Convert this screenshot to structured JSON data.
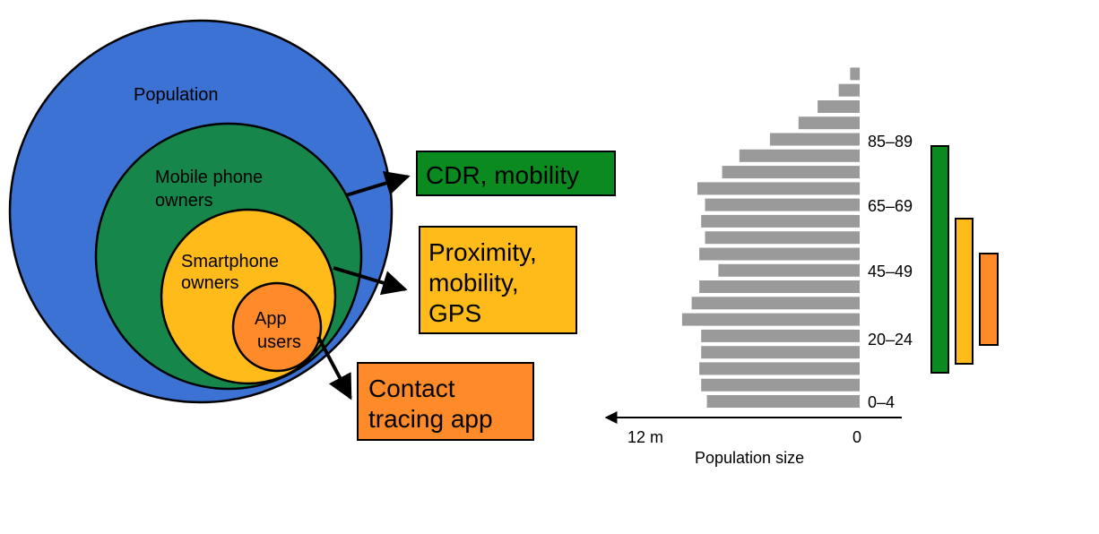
{
  "colors": {
    "population": "#3b72d3",
    "mobile": "#17864a",
    "smartphone": "#ffbb1a",
    "app": "#ff8a2a",
    "box_cdr": "#0b8a1f",
    "bar_gray": "#9a9a9a",
    "bracket_green": "#0b8a1f",
    "bracket_yellow": "#ffbb1a",
    "bracket_orange": "#ff8a2a"
  },
  "venn": {
    "population_label": "Population",
    "mobile_label_1": "Mobile phone",
    "mobile_label_2": "owners",
    "smartphone_label_1": "Smartphone",
    "smartphone_label_2": "owners",
    "app_label_1": "App",
    "app_label_2": "users"
  },
  "boxes": {
    "cdr": "CDR, mobility",
    "proximity_1": "Proximity,",
    "proximity_2": "mobility,",
    "proximity_3": "GPS",
    "contact_1": "Contact",
    "contact_2": "tracing app"
  },
  "chart_data": {
    "type": "bar",
    "orientation": "horizontal",
    "xlabel": "Population size",
    "x_ticks": [
      "12 m",
      "0"
    ],
    "y_tick_labels": [
      "0–4",
      "20–24",
      "45–49",
      "65–69",
      "85–89"
    ],
    "bars_bottom_to_top": [
      8.0,
      8.3,
      8.4,
      8.3,
      8.3,
      9.3,
      8.8,
      8.4,
      7.4,
      8.4,
      8.1,
      8.3,
      8.1,
      8.5,
      7.2,
      6.3,
      4.7,
      3.2,
      2.2,
      1.1,
      0.5
    ]
  }
}
